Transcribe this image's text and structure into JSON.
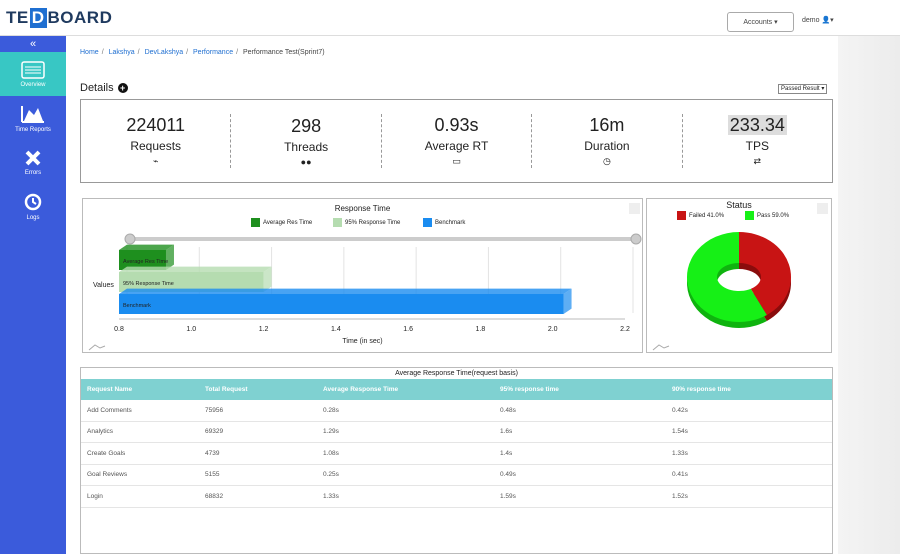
{
  "app": {
    "logo_left": "TE",
    "logo_mark": "D",
    "logo_right": "BOARD"
  },
  "header": {
    "accounts_label": "Accounts",
    "user_label": "demo"
  },
  "sidebar": {
    "items": [
      {
        "label": "Overview",
        "icon": "overview-icon"
      },
      {
        "label": "Time Reports",
        "icon": "area-chart-icon"
      },
      {
        "label": "Errors",
        "icon": "x-icon"
      },
      {
        "label": "Logs",
        "icon": "history-icon"
      }
    ]
  },
  "breadcrumb": [
    "Home",
    "Lakshya",
    "DevLakshya",
    "Performance",
    "Performance Test(Sprint7)"
  ],
  "details": {
    "title": "Details",
    "filter": "Passed Result"
  },
  "stats": [
    {
      "value": "224011",
      "label": "Requests",
      "icon": "⌁"
    },
    {
      "value": "298",
      "label": "Threads",
      "icon": "●●"
    },
    {
      "value": "0.93s",
      "label": "Average RT",
      "icon": "▭"
    },
    {
      "value": "16m",
      "label": "Duration",
      "icon": "◷"
    },
    {
      "value": "233.34",
      "label": "TPS",
      "icon": "⇄"
    }
  ],
  "chart_data": [
    {
      "type": "bar",
      "title": "Response Time",
      "categories": [
        "Values"
      ],
      "series": [
        {
          "name": "Average Res Time",
          "values": [
            0.93
          ],
          "color": "#1e8f1e"
        },
        {
          "name": "95% Response Time",
          "values": [
            1.2
          ],
          "color": "#b5dcb0"
        },
        {
          "name": "Benchmark",
          "values": [
            2.03
          ],
          "color": "#1a8cf0"
        }
      ],
      "xlabel": "Time (in sec)",
      "ylabel": "Values",
      "xlim": [
        0.8,
        2.2
      ],
      "xticks": [
        "0.8",
        "1.0",
        "1.2",
        "1.4",
        "1.6",
        "1.8",
        "2.0",
        "2.2"
      ],
      "legend": "top"
    },
    {
      "type": "pie",
      "title": "Status",
      "labels": [
        "Failed",
        "Pass"
      ],
      "values": [
        41.0,
        59.0
      ],
      "label_texts": [
        "41.0%",
        "59.0%"
      ],
      "colors": [
        "#c81414",
        "#16f016"
      ]
    }
  ],
  "table": {
    "caption": "Average Response Time(request basis)",
    "columns": [
      "Request Name",
      "Total Request",
      "Average Response Time",
      "95% response time",
      "90% response time"
    ],
    "rows": [
      [
        "Add Comments",
        "75956",
        "0.28s",
        "0.48s",
        "0.42s"
      ],
      [
        "Analytics",
        "69329",
        "1.29s",
        "1.6s",
        "1.54s"
      ],
      [
        "Create Goals",
        "4739",
        "1.08s",
        "1.4s",
        "1.33s"
      ],
      [
        "Goal Reviews",
        "5155",
        "0.25s",
        "0.49s",
        "0.41s"
      ],
      [
        "Login",
        "68832",
        "1.33s",
        "1.59s",
        "1.52s"
      ]
    ]
  }
}
